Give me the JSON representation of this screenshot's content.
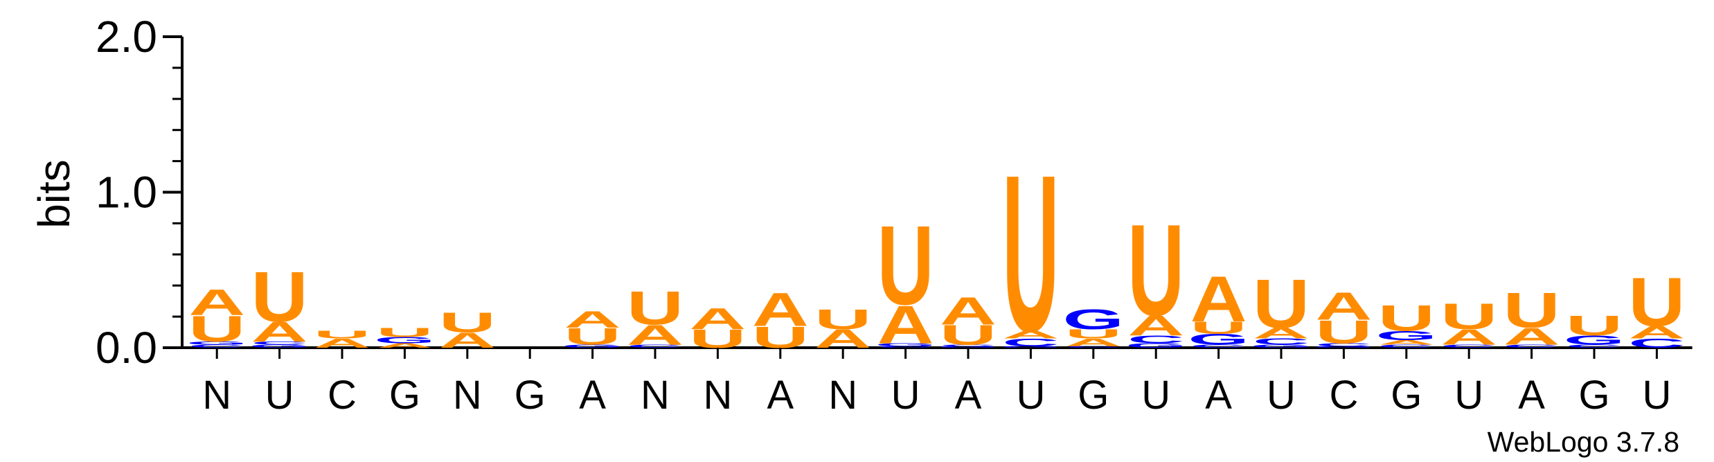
{
  "chart_data": {
    "type": "sequence-logo",
    "ylabel": "bits",
    "ylim": [
      0,
      2.0
    ],
    "yticks": [
      "0.0",
      "1.0",
      "2.0"
    ],
    "positions": [
      "N",
      "U",
      "C",
      "G",
      "N",
      "G",
      "A",
      "N",
      "N",
      "A",
      "N",
      "U",
      "A",
      "U",
      "G",
      "U",
      "A",
      "U",
      "C",
      "G",
      "U",
      "A",
      "G",
      "U"
    ],
    "stacks": [
      [
        {
          "letter": "C",
          "bits": 0.02
        },
        {
          "letter": "G",
          "bits": 0.02
        },
        {
          "letter": "U",
          "bits": 0.17
        },
        {
          "letter": "A",
          "bits": 0.17
        }
      ],
      [
        {
          "letter": "G",
          "bits": 0.02
        },
        {
          "letter": "C",
          "bits": 0.02
        },
        {
          "letter": "A",
          "bits": 0.13
        },
        {
          "letter": "U",
          "bits": 0.33
        }
      ],
      [
        {
          "letter": "A",
          "bits": 0.06
        },
        {
          "letter": "U",
          "bits": 0.05
        }
      ],
      [
        {
          "letter": "A",
          "bits": 0.03
        },
        {
          "letter": "G",
          "bits": 0.04
        },
        {
          "letter": "U",
          "bits": 0.06
        }
      ],
      [
        {
          "letter": "A",
          "bits": 0.1
        },
        {
          "letter": "U",
          "bits": 0.13
        }
      ],
      [],
      [
        {
          "letter": "G",
          "bits": 0.02
        },
        {
          "letter": "U",
          "bits": 0.11
        },
        {
          "letter": "A",
          "bits": 0.11
        }
      ],
      [
        {
          "letter": "C",
          "bits": 0.02
        },
        {
          "letter": "A",
          "bits": 0.13
        },
        {
          "letter": "U",
          "bits": 0.22
        }
      ],
      [
        {
          "letter": "U",
          "bits": 0.12
        },
        {
          "letter": "A",
          "bits": 0.14
        }
      ],
      [
        {
          "letter": "U",
          "bits": 0.14
        },
        {
          "letter": "A",
          "bits": 0.22
        }
      ],
      [
        {
          "letter": "A",
          "bits": 0.12
        },
        {
          "letter": "U",
          "bits": 0.13
        }
      ],
      [
        {
          "letter": "C",
          "bits": 0.01
        },
        {
          "letter": "G",
          "bits": 0.02
        },
        {
          "letter": "A",
          "bits": 0.25
        },
        {
          "letter": "U",
          "bits": 0.52
        }
      ],
      [
        {
          "letter": "G",
          "bits": 0.01
        },
        {
          "letter": "C",
          "bits": 0.01
        },
        {
          "letter": "U",
          "bits": 0.13
        },
        {
          "letter": "A",
          "bits": 0.18
        }
      ],
      [
        {
          "letter": "G",
          "bits": 0.01
        },
        {
          "letter": "C",
          "bits": 0.05
        },
        {
          "letter": "A",
          "bits": 0.05
        },
        {
          "letter": "U",
          "bits": 1.03
        }
      ],
      [
        {
          "letter": "C",
          "bits": 0.01
        },
        {
          "letter": "A",
          "bits": 0.05
        },
        {
          "letter": "U",
          "bits": 0.06
        },
        {
          "letter": "G",
          "bits": 0.13
        }
      ],
      [
        {
          "letter": "G",
          "bits": 0.03
        },
        {
          "letter": "C",
          "bits": 0.05
        },
        {
          "letter": "A",
          "bits": 0.13
        },
        {
          "letter": "U",
          "bits": 0.6
        }
      ],
      [
        {
          "letter": "C",
          "bits": 0.02
        },
        {
          "letter": "G",
          "bits": 0.07
        },
        {
          "letter": "U",
          "bits": 0.08
        },
        {
          "letter": "A",
          "bits": 0.3
        }
      ],
      [
        {
          "letter": "G",
          "bits": 0.02
        },
        {
          "letter": "C",
          "bits": 0.04
        },
        {
          "letter": "A",
          "bits": 0.07
        },
        {
          "letter": "U",
          "bits": 0.32
        }
      ],
      [
        {
          "letter": "G",
          "bits": 0.01
        },
        {
          "letter": "C",
          "bits": 0.02
        },
        {
          "letter": "U",
          "bits": 0.15
        },
        {
          "letter": "A",
          "bits": 0.18
        }
      ],
      [
        {
          "letter": "C",
          "bits": 0.02
        },
        {
          "letter": "A",
          "bits": 0.03
        },
        {
          "letter": "G",
          "bits": 0.06
        },
        {
          "letter": "U",
          "bits": 0.17
        }
      ],
      [
        {
          "letter": "C",
          "bits": 0.02
        },
        {
          "letter": "A",
          "bits": 0.1
        },
        {
          "letter": "U",
          "bits": 0.17
        }
      ],
      [
        {
          "letter": "C",
          "bits": 0.02
        },
        {
          "letter": "A",
          "bits": 0.11
        },
        {
          "letter": "U",
          "bits": 0.23
        }
      ],
      [
        {
          "letter": "C",
          "bits": 0.02
        },
        {
          "letter": "G",
          "bits": 0.06
        },
        {
          "letter": "U",
          "bits": 0.13
        }
      ],
      [
        {
          "letter": "C",
          "bits": 0.06
        },
        {
          "letter": "A",
          "bits": 0.08
        },
        {
          "letter": "U",
          "bits": 0.32
        }
      ]
    ],
    "colors": {
      "A": "#ff8c00",
      "U": "#ff8c00",
      "G": "#0000ff",
      "C": "#0000ff"
    },
    "grid": false,
    "legend": "none"
  },
  "footer": {
    "credit": "WebLogo 3.7.8"
  }
}
